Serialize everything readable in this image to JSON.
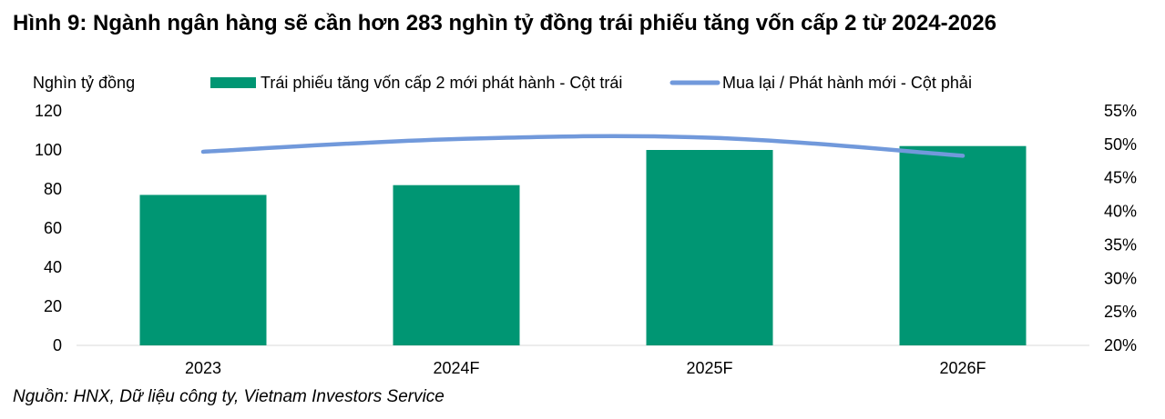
{
  "title": "Hình 9: Ngành ngân hàng sẽ cần hơn 283 nghìn tỷ đồng trái phiếu tăng vốn cấp 2 từ 2024-2026",
  "source": "Nguồn: HNX, Dữ liệu công ty, Vietnam Investors Service",
  "colors": {
    "bar": "#009673",
    "line": "#7199DB",
    "text": "#000000"
  },
  "chart_data": {
    "type": "bar",
    "categories": [
      "2023",
      "2024F",
      "2025F",
      "2026F"
    ],
    "ylabel": "Nghìn tỷ đồng",
    "ylim": [
      0,
      120
    ],
    "y_ticks": [
      "0",
      "20",
      "40",
      "60",
      "80",
      "100",
      "120"
    ],
    "y2lim": [
      20,
      55
    ],
    "y2_ticks": [
      "20%",
      "25%",
      "30%",
      "35%",
      "40%",
      "45%",
      "50%",
      "55%"
    ],
    "legend_position": "top",
    "series": [
      {
        "name": "Trái phiếu tăng vốn cấp 2 mới phát hành - Cột trái",
        "type": "bar",
        "axis": "left",
        "values": [
          77,
          82,
          100,
          102
        ]
      },
      {
        "name": "Mua lại / Phát hành mới - Cột phải",
        "type": "line",
        "axis": "right",
        "values": [
          48.9,
          50.8,
          51.0,
          48.3
        ]
      }
    ]
  }
}
